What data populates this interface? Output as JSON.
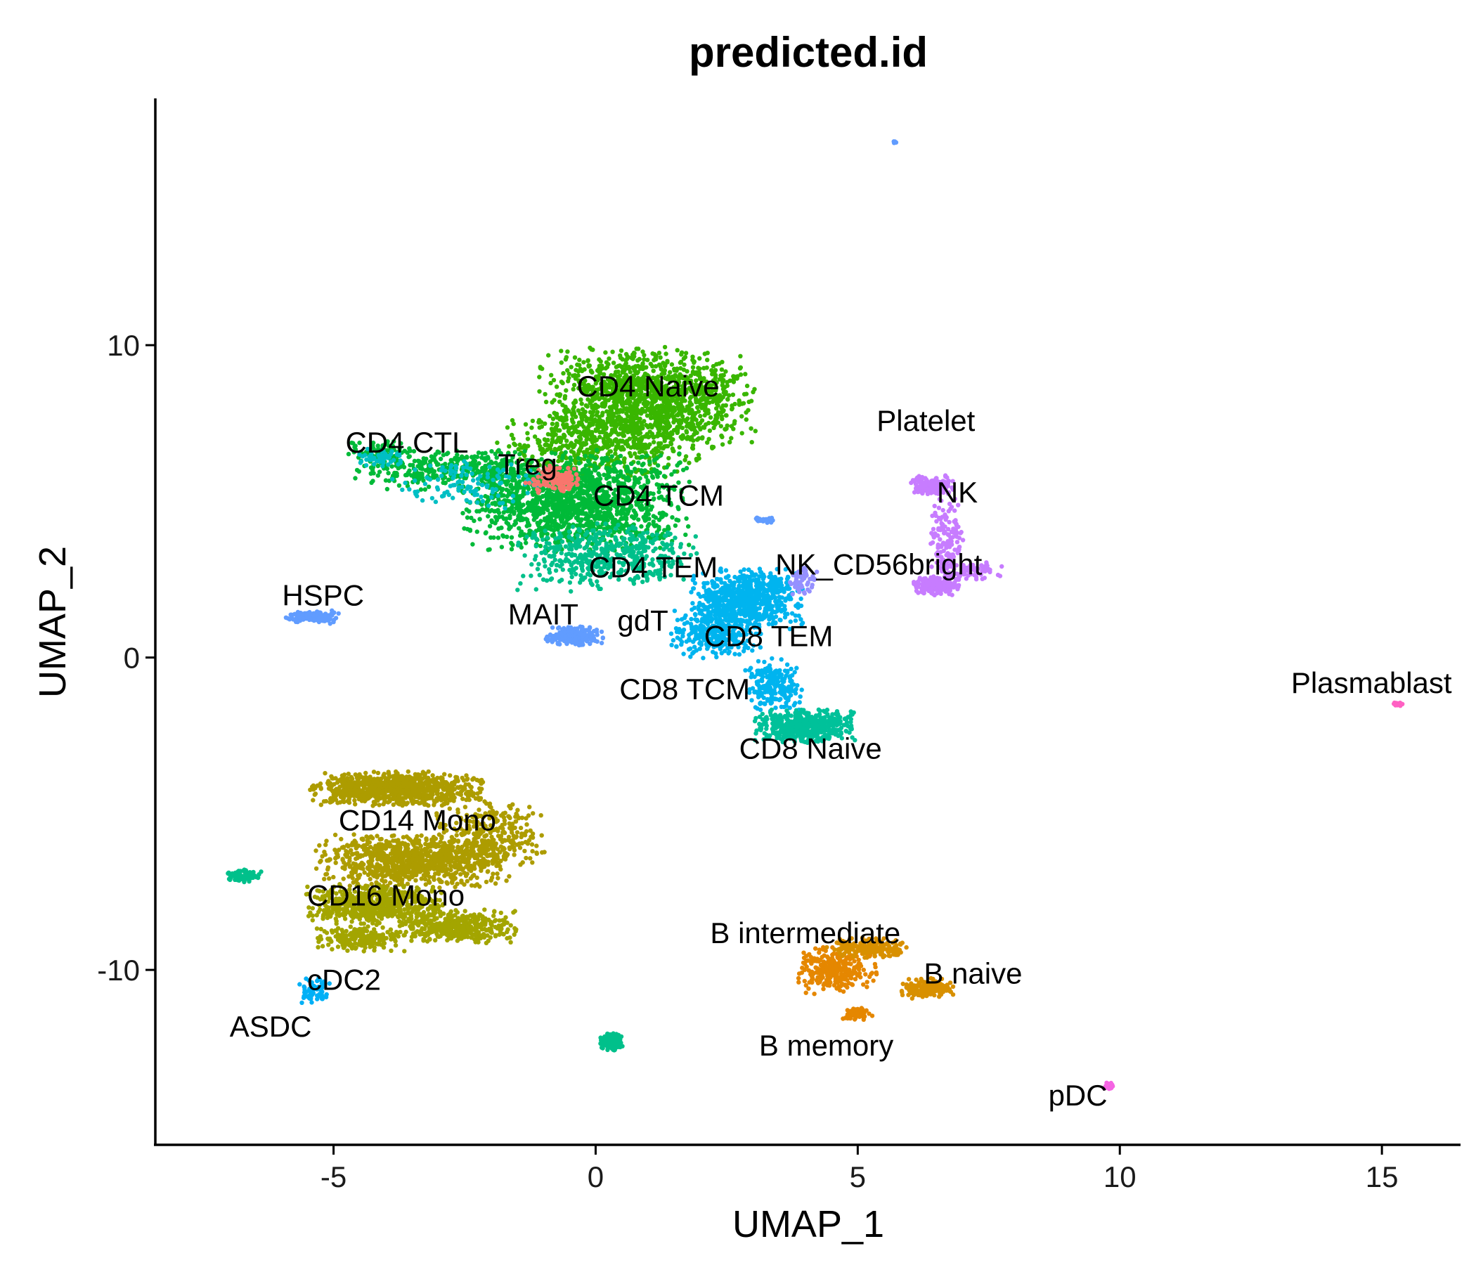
{
  "chart_data": {
    "type": "scatter",
    "title": "predicted.id",
    "xlabel": "UMAP_1",
    "ylabel": "UMAP_2",
    "xlim": [
      -8.4,
      16.5
    ],
    "ylim": [
      -15.6,
      17.9
    ],
    "xticks": [
      -5,
      0,
      5,
      10,
      15
    ],
    "xtick_labels": [
      "-5",
      "0",
      "5",
      "10",
      "15"
    ],
    "yticks": [
      -10,
      0,
      10
    ],
    "ytick_labels": [
      "-10",
      "0",
      "10"
    ],
    "grid": false,
    "legend": "none",
    "clusters": [
      {
        "name": "CD4 Naive",
        "color": "#39B600",
        "label_xy": [
          1.0,
          8.7
        ],
        "blobs": [
          [
            1.0,
            8.3,
            1.9,
            1.5,
            1400
          ],
          [
            0.0,
            6.8,
            1.8,
            1.0,
            500
          ]
        ]
      },
      {
        "name": "CD4 TCM",
        "color": "#00BA38",
        "label_xy": [
          1.2,
          5.2
        ],
        "blobs": [
          [
            -0.4,
            5.0,
            2.0,
            1.5,
            1500
          ],
          [
            -2.9,
            6.0,
            1.6,
            0.6,
            300
          ],
          [
            -4.1,
            6.6,
            0.6,
            0.4,
            80
          ]
        ]
      },
      {
        "name": "CD4 TEM",
        "color": "#00C08B",
        "label_xy": [
          1.1,
          2.9
        ],
        "blobs": [
          [
            0.2,
            3.2,
            1.6,
            1.0,
            500
          ]
        ]
      },
      {
        "name": "CD4 CTL",
        "color": "#00BFC4",
        "label_xy": [
          -3.6,
          6.9
        ],
        "blobs": [
          [
            -4.1,
            6.4,
            0.4,
            0.3,
            60
          ],
          [
            -2.5,
            5.6,
            1.4,
            0.8,
            120
          ]
        ]
      },
      {
        "name": "Treg",
        "color": "#F8766D",
        "label_xy": [
          -1.3,
          6.2
        ],
        "blobs": [
          [
            -0.8,
            5.7,
            0.5,
            0.4,
            120
          ]
        ]
      },
      {
        "name": "MAIT",
        "color": "#7CAE00",
        "label_xy": [
          -1.0,
          1.4
        ],
        "blobs": []
      },
      {
        "name": "gdT",
        "color": "#619CFF",
        "label_xy": [
          0.9,
          1.2
        ],
        "blobs": [
          [
            -0.4,
            0.7,
            0.5,
            0.3,
            200
          ]
        ]
      },
      {
        "name": "CD8 TEM",
        "color": "#00B4EF",
        "label_xy": [
          3.3,
          0.7
        ],
        "blobs": [
          [
            2.9,
            1.9,
            1.0,
            0.9,
            700
          ],
          [
            2.3,
            0.8,
            0.8,
            0.8,
            300
          ],
          [
            3.4,
            -0.9,
            0.5,
            0.8,
            200
          ]
        ]
      },
      {
        "name": "CD8 TCM",
        "color": "#00A9FF",
        "label_xy": [
          1.7,
          -1.0
        ],
        "blobs": []
      },
      {
        "name": "CD8 Naive",
        "color": "#00C19A",
        "label_xy": [
          4.1,
          -2.9
        ],
        "blobs": [
          [
            4.0,
            -2.2,
            0.9,
            0.5,
            500
          ]
        ]
      },
      {
        "name": "NK_CD56bright",
        "color": "#9590FF",
        "label_xy": [
          5.4,
          3.0
        ],
        "blobs": [
          [
            3.9,
            2.5,
            0.3,
            0.5,
            50
          ]
        ]
      },
      {
        "name": "NK",
        "color": "#C77CFF",
        "label_xy": [
          6.9,
          5.3
        ],
        "blobs": [
          [
            6.4,
            5.5,
            0.4,
            0.3,
            150
          ],
          [
            6.7,
            3.8,
            0.3,
            1.3,
            150
          ],
          [
            6.5,
            2.3,
            0.4,
            0.3,
            200
          ],
          [
            7.1,
            2.8,
            0.6,
            0.3,
            80
          ]
        ]
      },
      {
        "name": "Platelet",
        "color": "#ABA300",
        "label_xy": [
          6.3,
          7.6
        ],
        "blobs": []
      },
      {
        "name": "HSPC",
        "color": "#619CFF",
        "label_xy": [
          -5.2,
          2.0
        ],
        "blobs": [
          [
            -5.4,
            1.3,
            0.5,
            0.2,
            120
          ]
        ]
      },
      {
        "name": "CD14 Mono",
        "color": "#AD9C00",
        "label_xy": [
          -3.4,
          -5.2
        ],
        "blobs": [
          [
            -3.8,
            -4.2,
            1.5,
            0.5,
            900
          ],
          [
            -3.5,
            -6.5,
            1.7,
            0.8,
            900
          ],
          [
            -2.0,
            -5.7,
            1.0,
            1.0,
            300
          ]
        ]
      },
      {
        "name": "CD16 Mono",
        "color": "#A3A500",
        "label_xy": [
          -4.0,
          -7.6
        ],
        "blobs": [
          [
            -4.2,
            -7.9,
            1.2,
            0.6,
            600
          ],
          [
            -2.6,
            -8.6,
            1.1,
            0.5,
            400
          ],
          [
            -4.5,
            -9.0,
            0.8,
            0.4,
            200
          ]
        ]
      },
      {
        "name": "cDC2",
        "color": "#00B0F6",
        "label_xy": [
          -4.8,
          -10.3
        ],
        "blobs": [
          [
            -5.4,
            -10.7,
            0.3,
            0.4,
            60
          ]
        ]
      },
      {
        "name": "ASDC",
        "color": "#00BCD8",
        "label_xy": [
          -6.2,
          -11.8
        ],
        "blobs": []
      },
      {
        "name": "B intermediate",
        "color": "#E58700",
        "label_xy": [
          4.0,
          -8.8
        ],
        "blobs": [
          [
            4.6,
            -10.0,
            0.7,
            0.7,
            300
          ]
        ]
      },
      {
        "name": "B naive",
        "color": "#D89000",
        "label_xy": [
          7.2,
          -10.1
        ],
        "blobs": [
          [
            5.2,
            -9.3,
            0.7,
            0.3,
            200
          ],
          [
            6.3,
            -10.6,
            0.5,
            0.3,
            150
          ]
        ]
      },
      {
        "name": "B memory",
        "color": "#E58700",
        "label_xy": [
          4.4,
          -12.4
        ],
        "blobs": [
          [
            5.0,
            -11.4,
            0.3,
            0.2,
            60
          ]
        ]
      },
      {
        "name": "pDC",
        "color": "#F564E3",
        "label_xy": [
          9.2,
          -14.0
        ],
        "blobs": [
          [
            9.8,
            -13.7,
            0.1,
            0.1,
            30
          ]
        ]
      },
      {
        "name": "Plasmablast",
        "color": "#FF61C3",
        "label_xy": [
          14.8,
          -0.8
        ],
        "blobs": [
          [
            15.3,
            -1.5,
            0.1,
            0.05,
            15
          ]
        ]
      },
      {
        "name": "",
        "color": "#00C08B",
        "label_xy": null,
        "blobs": [
          [
            -6.7,
            -7.0,
            0.3,
            0.2,
            90
          ],
          [
            0.3,
            -12.3,
            0.2,
            0.25,
            150
          ]
        ]
      },
      {
        "name": "",
        "color": "#619CFF",
        "label_xy": null,
        "blobs": [
          [
            5.7,
            16.5,
            0.03,
            0.05,
            5
          ],
          [
            3.2,
            4.4,
            0.2,
            0.1,
            20
          ]
        ]
      }
    ]
  }
}
